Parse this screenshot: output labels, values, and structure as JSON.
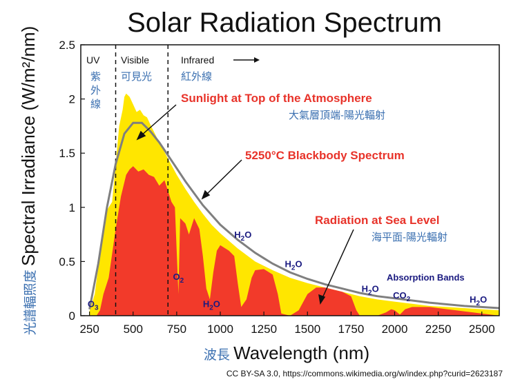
{
  "chart_data": {
    "type": "area",
    "title": "Solar Radiation Spectrum",
    "xlabel_cn": "波長",
    "xlabel": "Wavelength (nm)",
    "ylabel_cn": "光譜輻照度",
    "ylabel": "Spectral Irradiance (W/m²/nm)",
    "xlim": [
      200,
      2600
    ],
    "ylim": [
      0,
      2.5
    ],
    "x_ticks": [
      250,
      500,
      750,
      1000,
      1250,
      1500,
      1750,
      2000,
      2250,
      2500
    ],
    "y_ticks": [
      {
        "v": 0,
        "label": "0"
      },
      {
        "v": 0.5,
        "label": "0.5"
      },
      {
        "v": 1,
        "label": "1"
      },
      {
        "v": 1.5,
        "label": "1.5"
      },
      {
        "v": 2,
        "label": "2"
      },
      {
        "v": 2.5,
        "label": "2.5"
      }
    ],
    "regions": [
      {
        "label": "UV",
        "label_cn": "紫\n外\n線"
      },
      {
        "label": "Visible",
        "label_cn": "可見光"
      },
      {
        "label": "Infrared",
        "label_cn": "紅外線"
      }
    ],
    "region_boundaries": [
      400,
      700
    ],
    "series": [
      {
        "name": "Sunlight at Top of the Atmosphere",
        "name_cn": "大氣層頂端-陽光輻射",
        "color": "#ffe600",
        "points": [
          [
            250,
            0.04
          ],
          [
            280,
            0.2
          ],
          [
            300,
            0.45
          ],
          [
            320,
            0.72
          ],
          [
            340,
            0.95
          ],
          [
            360,
            1.0
          ],
          [
            380,
            1.05
          ],
          [
            400,
            1.4
          ],
          [
            420,
            1.75
          ],
          [
            440,
            1.9
          ],
          [
            450,
            2.02
          ],
          [
            460,
            2.05
          ],
          [
            480,
            2.02
          ],
          [
            500,
            1.95
          ],
          [
            520,
            1.88
          ],
          [
            540,
            1.9
          ],
          [
            560,
            1.85
          ],
          [
            580,
            1.83
          ],
          [
            600,
            1.76
          ],
          [
            650,
            1.6
          ],
          [
            700,
            1.45
          ],
          [
            750,
            1.3
          ],
          [
            800,
            1.17
          ],
          [
            850,
            1.05
          ],
          [
            900,
            0.94
          ],
          [
            950,
            0.84
          ],
          [
            1000,
            0.76
          ],
          [
            1100,
            0.62
          ],
          [
            1200,
            0.5
          ],
          [
            1300,
            0.42
          ],
          [
            1400,
            0.35
          ],
          [
            1500,
            0.3
          ],
          [
            1600,
            0.26
          ],
          [
            1700,
            0.22
          ],
          [
            1800,
            0.18
          ],
          [
            1900,
            0.15
          ],
          [
            2000,
            0.13
          ],
          [
            2100,
            0.11
          ],
          [
            2200,
            0.09
          ],
          [
            2300,
            0.08
          ],
          [
            2400,
            0.07
          ],
          [
            2500,
            0.06
          ],
          [
            2600,
            0.05
          ]
        ]
      },
      {
        "name": "5250°C Blackbody Spectrum",
        "color": "#7f7f7f",
        "points": [
          [
            250,
            0.06
          ],
          [
            300,
            0.48
          ],
          [
            350,
            1.0
          ],
          [
            400,
            1.4
          ],
          [
            450,
            1.68
          ],
          [
            500,
            1.78
          ],
          [
            550,
            1.78
          ],
          [
            600,
            1.7
          ],
          [
            650,
            1.6
          ],
          [
            700,
            1.48
          ],
          [
            800,
            1.24
          ],
          [
            900,
            1.02
          ],
          [
            1000,
            0.84
          ],
          [
            1100,
            0.7
          ],
          [
            1200,
            0.58
          ],
          [
            1300,
            0.48
          ],
          [
            1400,
            0.4
          ],
          [
            1500,
            0.34
          ],
          [
            1600,
            0.29
          ],
          [
            1700,
            0.25
          ],
          [
            1800,
            0.21
          ],
          [
            1900,
            0.18
          ],
          [
            2000,
            0.16
          ],
          [
            2200,
            0.12
          ],
          [
            2400,
            0.09
          ],
          [
            2600,
            0.07
          ]
        ]
      },
      {
        "name": "Radiation at Sea Level",
        "name_cn": "海平面-陽光輻射",
        "color": "#f23a2a",
        "points": [
          [
            250,
            0
          ],
          [
            290,
            0
          ],
          [
            310,
            0.05
          ],
          [
            330,
            0.2
          ],
          [
            360,
            0.35
          ],
          [
            400,
            0.8
          ],
          [
            430,
            1.1
          ],
          [
            460,
            1.3
          ],
          [
            480,
            1.35
          ],
          [
            500,
            1.38
          ],
          [
            530,
            1.33
          ],
          [
            560,
            1.35
          ],
          [
            590,
            1.3
          ],
          [
            620,
            1.28
          ],
          [
            650,
            1.2
          ],
          [
            680,
            1.25
          ],
          [
            700,
            1.15
          ],
          [
            720,
            1.05
          ],
          [
            740,
            1.0
          ],
          [
            760,
            0.2
          ],
          [
            770,
            0.9
          ],
          [
            800,
            0.85
          ],
          [
            820,
            0.75
          ],
          [
            850,
            0.9
          ],
          [
            880,
            0.8
          ],
          [
            900,
            0.55
          ],
          [
            920,
            0.25
          ],
          [
            940,
            0.15
          ],
          [
            960,
            0.4
          ],
          [
            980,
            0.6
          ],
          [
            1000,
            0.65
          ],
          [
            1050,
            0.6
          ],
          [
            1080,
            0.55
          ],
          [
            1100,
            0.3
          ],
          [
            1120,
            0.08
          ],
          [
            1150,
            0.15
          ],
          [
            1180,
            0.35
          ],
          [
            1200,
            0.42
          ],
          [
            1250,
            0.43
          ],
          [
            1300,
            0.38
          ],
          [
            1330,
            0.2
          ],
          [
            1350,
            0.02
          ],
          [
            1400,
            0
          ],
          [
            1450,
            0.05
          ],
          [
            1500,
            0.2
          ],
          [
            1550,
            0.26
          ],
          [
            1600,
            0.26
          ],
          [
            1650,
            0.24
          ],
          [
            1700,
            0.22
          ],
          [
            1750,
            0.18
          ],
          [
            1780,
            0.05
          ],
          [
            1800,
            0
          ],
          [
            1900,
            0
          ],
          [
            1950,
            0.03
          ],
          [
            1980,
            0.06
          ],
          [
            2000,
            0.05
          ],
          [
            2030,
            0.01
          ],
          [
            2060,
            0.06
          ],
          [
            2100,
            0.08
          ],
          [
            2150,
            0.08
          ],
          [
            2200,
            0.08
          ],
          [
            2250,
            0.07
          ],
          [
            2300,
            0.06
          ],
          [
            2350,
            0.05
          ],
          [
            2400,
            0.04
          ],
          [
            2450,
            0.03
          ],
          [
            2500,
            0.02
          ],
          [
            2550,
            0.01
          ],
          [
            2600,
            0
          ]
        ]
      }
    ],
    "absorption_bands": {
      "title": "Absorption Bands",
      "labels": [
        {
          "text": "O3",
          "base": "O",
          "sub": "3",
          "x": 270,
          "y": 0.08
        },
        {
          "text": "O2",
          "base": "O",
          "sub": "2",
          "x": 760,
          "y": 0.33
        },
        {
          "text": "H2O",
          "base": "H",
          "sub": "2",
          "tail": "O",
          "x": 950,
          "y": 0.08
        },
        {
          "text": "H2O",
          "base": "H",
          "sub": "2",
          "tail": "O",
          "x": 1130,
          "y": 0.72
        },
        {
          "text": "H2O",
          "base": "H",
          "sub": "2",
          "tail": "O",
          "x": 1420,
          "y": 0.45
        },
        {
          "text": "H2O",
          "base": "H",
          "sub": "2",
          "tail": "O",
          "x": 1860,
          "y": 0.22
        },
        {
          "text": "CO2",
          "base": "CO",
          "sub": "2",
          "x": 2040,
          "y": 0.16
        },
        {
          "text": "H2O",
          "base": "H",
          "sub": "2",
          "tail": "O",
          "x": 2480,
          "y": 0.12
        }
      ]
    }
  },
  "credit": "CC BY-SA 3.0, https://commons.wikimedia.org/w/index.php?curid=2623187"
}
